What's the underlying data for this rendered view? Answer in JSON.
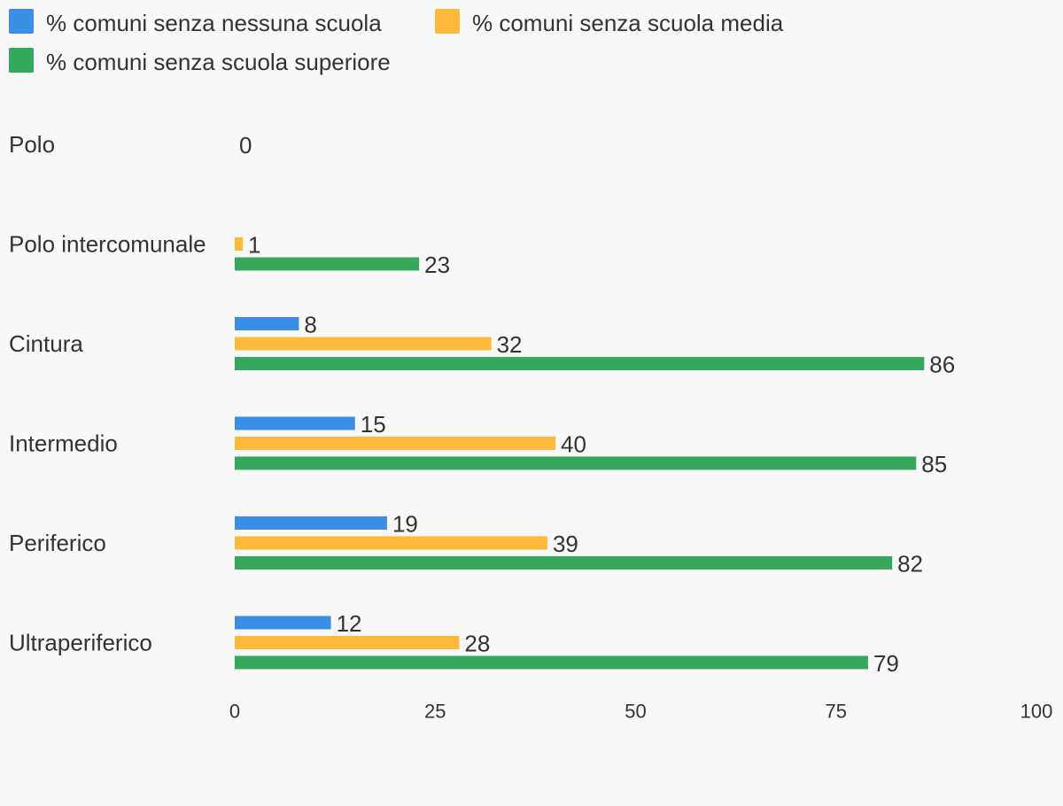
{
  "chart_data": {
    "type": "bar",
    "orientation": "horizontal",
    "categories": [
      "Polo",
      "Polo intercomunale",
      "Cintura",
      "Intermedio",
      "Periferico",
      "Ultraperiferico"
    ],
    "series": [
      {
        "name": "% comuni senza nessuna scuola",
        "color": "#3a8ee6",
        "values": [
          null,
          null,
          8,
          15,
          19,
          12
        ]
      },
      {
        "name": "% comuni senza scuola media",
        "color": "#ffb93a",
        "values": [
          null,
          1,
          32,
          40,
          39,
          28
        ]
      },
      {
        "name": "% comuni senza scuola superiore",
        "color": "#36a85c",
        "values": [
          null,
          23,
          86,
          85,
          82,
          79
        ]
      }
    ],
    "category_value_labels": [
      "0",
      null,
      null,
      null,
      null,
      null
    ],
    "xlim": [
      0,
      100
    ],
    "xticks": [
      0,
      25,
      50,
      75,
      100
    ],
    "grid": false,
    "legend_position": "top"
  }
}
